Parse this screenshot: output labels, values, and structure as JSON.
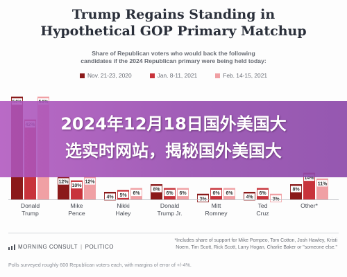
{
  "chart_data": {
    "type": "bar",
    "title_lines": [
      "Trump Regains Standing in",
      "Hypothetical GOP Primary Matchup"
    ],
    "subtitle_lines": [
      "Share of Republican voters who would back the following",
      "candidates if the 2024 Republican primary were being held today:"
    ],
    "categories": [
      [
        "Donald",
        "Trump"
      ],
      [
        "Mike",
        "Pence"
      ],
      [
        "Nikki",
        "Haley"
      ],
      [
        "Donald",
        "Trump Jr."
      ],
      [
        "Mitt",
        "Romney"
      ],
      [
        "Ted",
        "Cruz"
      ],
      [
        "Other*",
        ""
      ]
    ],
    "series": [
      {
        "name": "Nov. 21-23, 2020",
        "color": "#8b1a1a",
        "values": [
          54,
          12,
          4,
          8,
          3,
          4,
          8
        ]
      },
      {
        "name": "Jan. 8-11, 2021",
        "color": "#c8333b",
        "values": [
          42,
          10,
          5,
          6,
          6,
          6,
          14
        ]
      },
      {
        "name": "Feb. 14-15, 2021",
        "color": "#f0a0a4",
        "values": [
          54,
          12,
          6,
          6,
          6,
          3,
          11
        ]
      }
    ],
    "value_suffix": "%",
    "ylim": [
      0,
      60
    ],
    "legend_position": "top-center"
  },
  "overlay": {
    "line1": "2024年12月18日国外美国大",
    "line2": "选实时网站，揭秘国外美国大"
  },
  "footer": {
    "brand1": "MORNING CONSULT",
    "separator": "|",
    "brand2": "POLITICO",
    "note_lines": [
      "*Includes share of support for Mike Pompeo, Tom Cotton, Josh Hawley, Kristi",
      "Noem, Tim Scott, Rick Scott, Larry Hogan, Charlie Baker or \"someone else.\""
    ],
    "source": "Polls surveyed roughly 600 Republican voters each, with margins of error of +/-4%."
  }
}
